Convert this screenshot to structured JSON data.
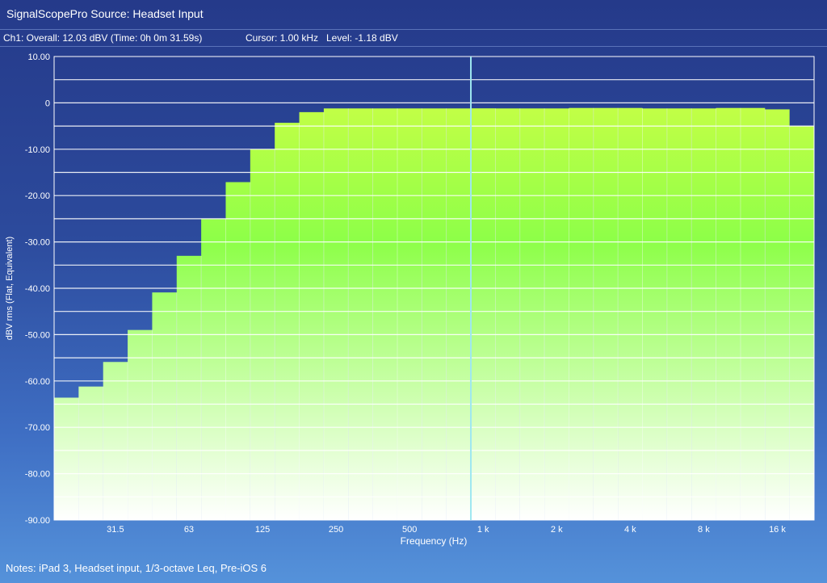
{
  "window": {
    "title": "SignalScopePro Source:  Headset Input"
  },
  "status": {
    "overall": "Ch1:  Overall: 12.03  dBV  (Time: 0h  0m 31.59s)",
    "cursor": "Cursor: 1.00 kHz",
    "level": "Level: -1.18 dBV"
  },
  "notes": "Notes: iPad 3, Headset input, 1/3-octave Leq, Pre-iOS 6",
  "colors": {
    "background_top": "#253a8a",
    "background_bottom": "#5592da",
    "bar_top": "#d6ff45",
    "bar_mid": "#8dff48",
    "bar_bottom": "#ffffff",
    "grid": "#ffffff",
    "cursor": "#9ee8f0"
  },
  "chart_data": {
    "type": "bar",
    "xlabel": "Frequency (Hz)",
    "ylabel": "dBV rms (Flat, Equivalent)",
    "ylim": [
      -90,
      10
    ],
    "yticks": [
      "10.00",
      "0",
      "-10.00",
      "-20.00",
      "-30.00",
      "-40.00",
      "-50.00",
      "-60.00",
      "-70.00",
      "-80.00",
      "-90.00"
    ],
    "xtick_labels": [
      "31.5",
      "63",
      "125",
      "250",
      "500",
      "1 k",
      "2 k",
      "4 k",
      "8 k",
      "16 k"
    ],
    "categories": [
      "20",
      "25",
      "31.5",
      "40",
      "50",
      "63",
      "80",
      "100",
      "125",
      "160",
      "200",
      "250",
      "315",
      "400",
      "500",
      "630",
      "800",
      "1 k",
      "1.25 k",
      "1.6 k",
      "2 k",
      "2.5 k",
      "3.15 k",
      "4 k",
      "5 k",
      "6.3 k",
      "8 k",
      "10 k",
      "12.5 k",
      "16 k",
      "20 k"
    ],
    "values": [
      -63.6,
      -61.2,
      -55.9,
      -49.0,
      -40.9,
      -33.0,
      -25.1,
      -17.1,
      -10.0,
      -4.3,
      -2.0,
      -1.2,
      -1.2,
      -1.2,
      -1.2,
      -1.2,
      -1.2,
      -1.18,
      -1.2,
      -1.2,
      -1.2,
      -1.1,
      -1.1,
      -1.1,
      -1.2,
      -1.2,
      -1.2,
      -1.1,
      -1.1,
      -1.4,
      -5.0
    ],
    "cursor": {
      "category": "1 k",
      "value": -1.18
    },
    "grid": true
  }
}
